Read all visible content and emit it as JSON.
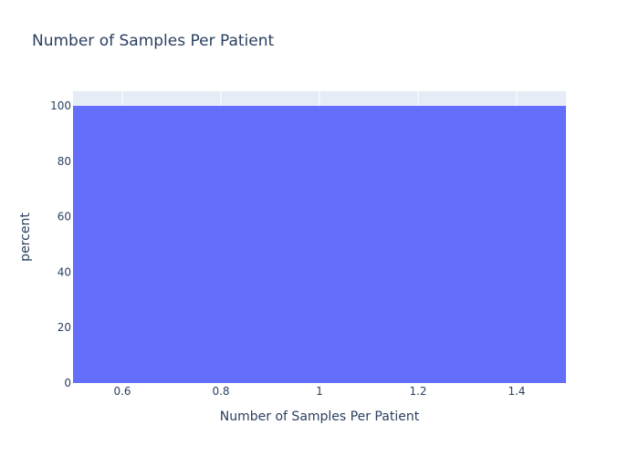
{
  "chart_data": {
    "type": "bar",
    "title": "Number of Samples Per Patient",
    "xlabel": "Number of Samples Per Patient",
    "ylabel": "percent",
    "x": [
      1
    ],
    "values": [
      100
    ],
    "bar_width": 1,
    "xlim": [
      0.5,
      1.5
    ],
    "ylim": [
      0,
      105.26
    ],
    "xticks": [
      0.6,
      0.8,
      1,
      1.2,
      1.4
    ],
    "xtick_labels": [
      "0.6",
      "0.8",
      "1",
      "1.2",
      "1.4"
    ],
    "yticks": [
      0,
      20,
      40,
      60,
      80,
      100
    ],
    "ytick_labels": [
      "0",
      "20",
      "40",
      "60",
      "80",
      "100"
    ],
    "grid": true,
    "legend": false,
    "colors": {
      "bar": "#636efa",
      "plot_background": "#e5ecf6",
      "gridline": "#ffffff",
      "text": "#2a3f5f"
    }
  }
}
